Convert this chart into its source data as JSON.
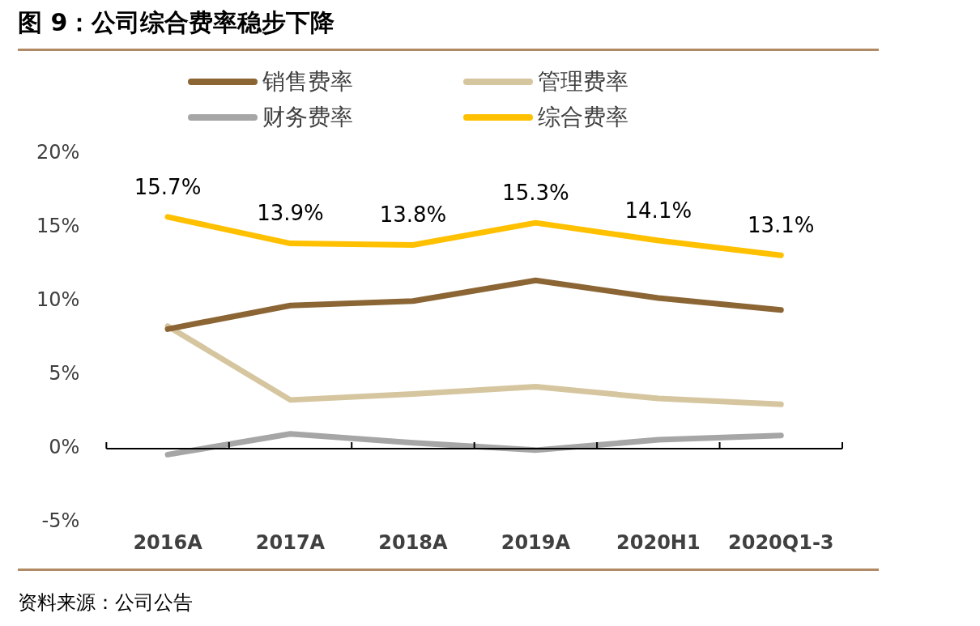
{
  "chart_data": {
    "type": "line",
    "title": "图 9：公司综合费率稳步下降",
    "categories": [
      "2016A",
      "2017A",
      "2018A",
      "2019A",
      "2020H1",
      "2020Q1-3"
    ],
    "series": [
      {
        "name": "销售费率",
        "color": "#8b6534",
        "values": [
          8.1,
          9.7,
          10.0,
          11.4,
          10.2,
          9.4
        ]
      },
      {
        "name": "管理费率",
        "color": "#d6c6a0",
        "values": [
          8.3,
          3.3,
          3.7,
          4.2,
          3.4,
          3.0
        ]
      },
      {
        "name": "财务费率",
        "color": "#a6a6a6",
        "values": [
          -0.4,
          1.0,
          0.4,
          -0.1,
          0.6,
          0.9
        ]
      },
      {
        "name": "综合费率",
        "color": "#ffc000",
        "values": [
          15.7,
          13.9,
          13.8,
          15.3,
          14.1,
          13.1
        ],
        "value_labels": [
          "15.7%",
          "13.9%",
          "13.8%",
          "15.3%",
          "14.1%",
          "13.1%"
        ]
      }
    ],
    "ylim": [
      -5,
      20
    ],
    "yticks": [
      {
        "value": -5,
        "label": "-5%"
      },
      {
        "value": 0,
        "label": "0%"
      },
      {
        "value": 5,
        "label": "5%"
      },
      {
        "value": 10,
        "label": "10%"
      },
      {
        "value": 15,
        "label": "15%"
      },
      {
        "value": 20,
        "label": "20%"
      }
    ],
    "grid": false,
    "ref_lines": [
      {
        "axis": "y",
        "value": 0,
        "color": "#000000"
      }
    ],
    "legend": "top",
    "line_style": "solid",
    "annotations": [
      "资料来源：公司公告"
    ]
  }
}
